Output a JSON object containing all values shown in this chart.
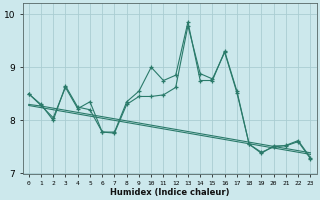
{
  "x": [
    0,
    1,
    2,
    3,
    4,
    5,
    6,
    7,
    8,
    9,
    10,
    11,
    12,
    13,
    14,
    15,
    16,
    17,
    18,
    19,
    20,
    21,
    22,
    23
  ],
  "line1": [
    8.5,
    8.3,
    8.0,
    8.65,
    8.25,
    8.2,
    7.78,
    7.78,
    8.35,
    8.55,
    9.0,
    8.75,
    8.85,
    9.85,
    8.75,
    8.75,
    9.3,
    8.55,
    7.55,
    7.38,
    7.52,
    7.52,
    7.6,
    7.28
  ],
  "line2": [
    8.5,
    8.28,
    8.05,
    8.62,
    8.22,
    8.35,
    7.78,
    7.76,
    8.3,
    8.45,
    8.45,
    8.48,
    8.62,
    9.78,
    8.88,
    8.78,
    9.28,
    8.52,
    7.55,
    7.4,
    7.5,
    7.53,
    7.62,
    7.3
  ],
  "trend1": [
    8.3,
    8.27,
    8.23,
    8.19,
    8.15,
    8.11,
    8.07,
    8.03,
    7.99,
    7.95,
    7.91,
    7.87,
    7.83,
    7.79,
    7.75,
    7.71,
    7.67,
    7.63,
    7.59,
    7.55,
    7.51,
    7.47,
    7.43,
    7.39
  ],
  "trend2": [
    8.28,
    8.24,
    8.2,
    8.16,
    8.12,
    8.08,
    8.04,
    8.0,
    7.96,
    7.92,
    7.88,
    7.84,
    7.8,
    7.76,
    7.72,
    7.68,
    7.64,
    7.6,
    7.56,
    7.52,
    7.48,
    7.44,
    7.4,
    7.36
  ],
  "bg_color": "#cce8ec",
  "line_color": "#2a7a6a",
  "grid_color": "#aacdd2",
  "xlabel": "Humidex (Indice chaleur)",
  "xlim": [
    -0.5,
    23.5
  ],
  "ylim": [
    7.0,
    10.2
  ],
  "yticks": [
    7,
    8,
    9,
    10
  ],
  "xticks": [
    0,
    1,
    2,
    3,
    4,
    5,
    6,
    7,
    8,
    9,
    10,
    11,
    12,
    13,
    14,
    15,
    16,
    17,
    18,
    19,
    20,
    21,
    22,
    23
  ]
}
